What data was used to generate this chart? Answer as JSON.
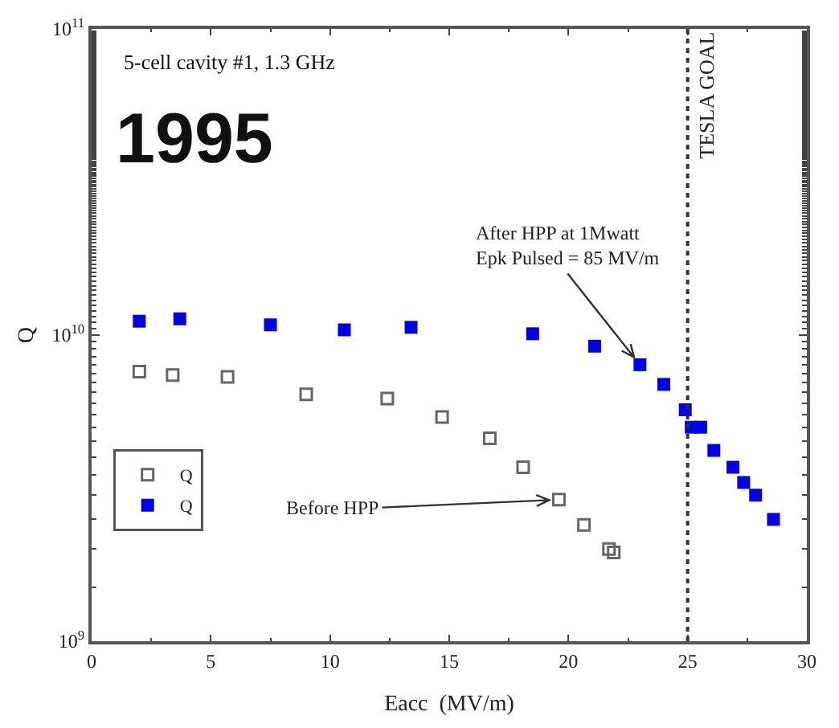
{
  "chart_data": {
    "type": "scatter",
    "xlabel": "Eacc  (MV/m)",
    "ylabel": "Q",
    "log": "y",
    "legend": "bottom left",
    "marker": "square",
    "xlim": [
      0,
      30
    ],
    "xticks": [
      0,
      5,
      10,
      15,
      20,
      25,
      30
    ],
    "ylim": [
      1000000000.0,
      100000000000.0
    ],
    "yticks": [
      {
        "value": 1000000000.0,
        "label": "10$^{9}$"
      },
      {
        "value": 10000000000.0,
        "label": "10$^{10}$"
      },
      {
        "value": 100000000000.0,
        "label": "10$^{11}$"
      }
    ],
    "series": [
      {
        "name": "Q",
        "color": "#666666",
        "x": [
          2.0,
          3.4,
          5.7,
          9.0,
          12.4,
          14.7,
          16.7,
          18.1,
          19.6,
          20.65,
          21.7,
          21.9
        ],
        "values": [
          7600000000.0,
          7400000000.0,
          7300000000.0,
          6400000000.0,
          6200000000.0,
          5400000000.0,
          4600000000.0,
          3700000000.0,
          2900000000.0,
          2400000000.0,
          2000000000.0,
          1950000000.0
        ]
      },
      {
        "name": "Q",
        "color": "#0000e6",
        "x": [
          2.0,
          3.7,
          7.5,
          10.6,
          13.4,
          18.5,
          21.1,
          23.0,
          24.0,
          24.9,
          25.15,
          25.55,
          26.1,
          26.9,
          27.35,
          27.85,
          28.6
        ],
        "values": [
          11100000000.0,
          11300000000.0,
          10800000000.0,
          10400000000.0,
          10600000000.0,
          10100000000.0,
          9200000000.0,
          8000000000.0,
          6900000000.0,
          5700000000.0,
          5000000000.0,
          5000000000.0,
          4200000000.0,
          3700000000.0,
          3300000000.0,
          3000000000.0,
          2500000000.0
        ]
      }
    ],
    "ref_lines": [
      {
        "axis": "x",
        "value": 25,
        "label": "TESLA GOAL",
        "line_style": "dotted",
        "color": "#333333"
      }
    ],
    "annotations": [
      "5-cell cavity #1, 1.3 GHz",
      "1995",
      {
        "text": "After HPP at 1Mwatt\nEpk Pulsed = 85 MV/m",
        "x": 23.0,
        "y": 8000000000.0
      },
      {
        "text": "Before HPP",
        "x": 19.6,
        "y": 2900000000.0
      }
    ]
  }
}
